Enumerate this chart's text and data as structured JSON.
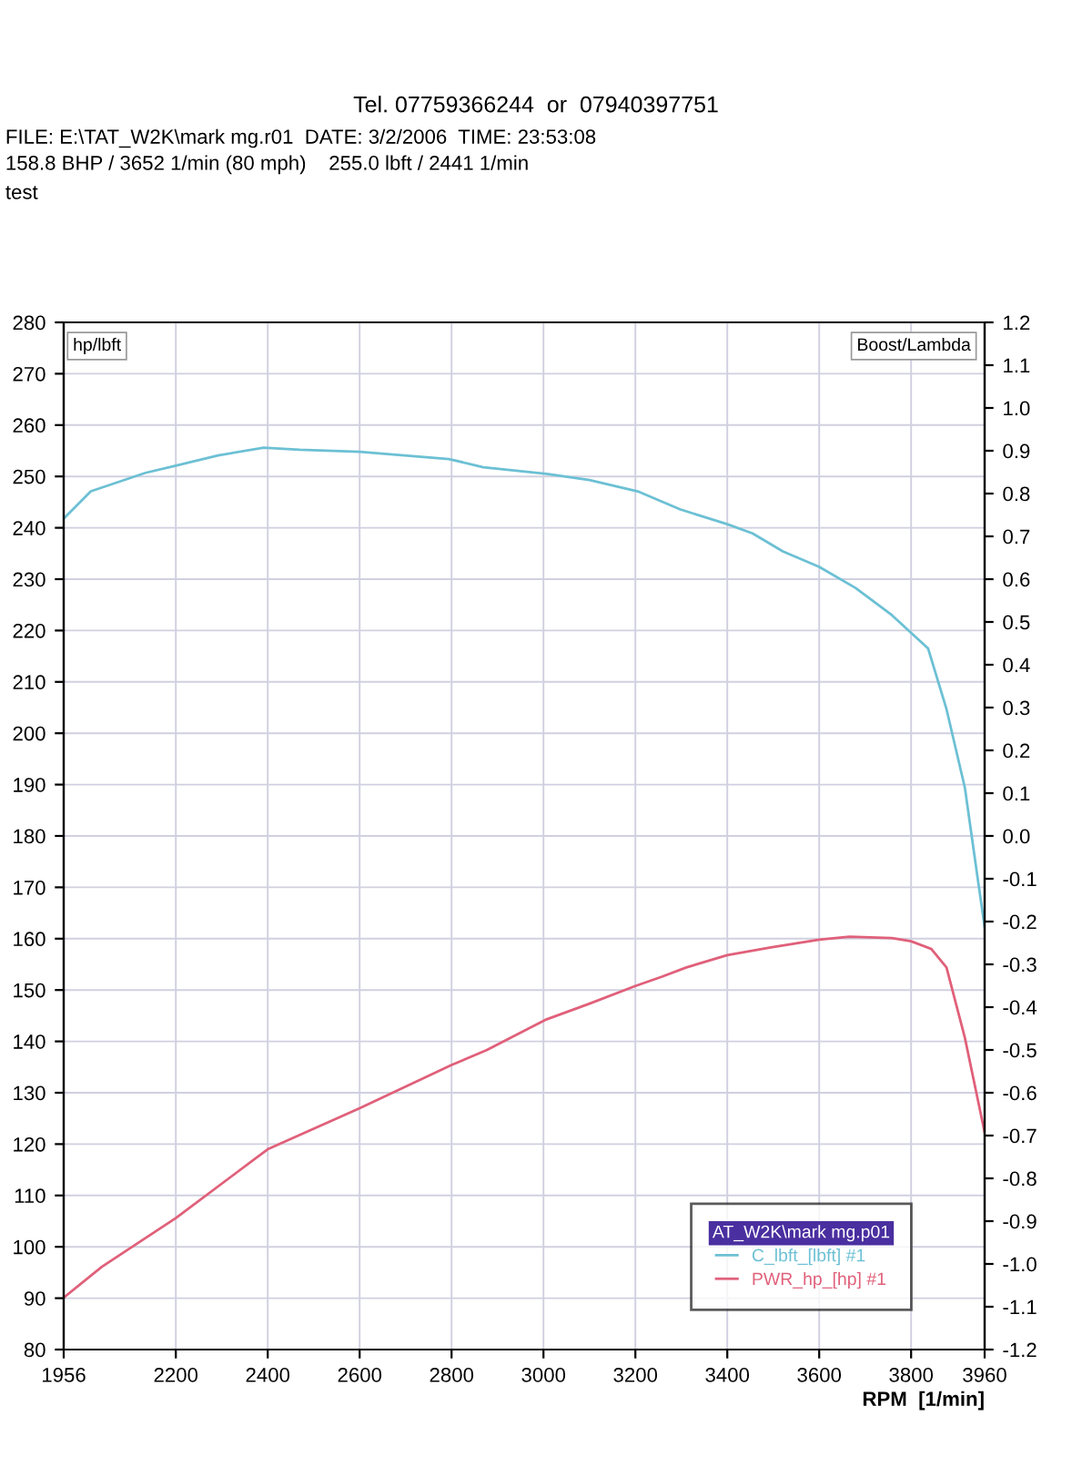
{
  "chart_data": {
    "type": "line",
    "annotations": [
      "Tel. 07759366244  or  07940397751",
      "FILE: E:\\TAT_W2K\\mark mg.r01  DATE: 3/2/2006  TIME: 23:53:08",
      "158.8 BHP / 3652 1/min (80 mph)    255.0 lbft / 2441 1/min",
      "test"
    ],
    "xlabel": "RPM  [1/min]",
    "ylabel": "hp/lbft",
    "y2label": "Boost/Lambda",
    "legend_title": "AT_W2K\\mark mg.p01",
    "legend": "bottom right",
    "grid": true,
    "xlim": [
      1956,
      3960
    ],
    "xticks": [
      1956,
      2200,
      2400,
      2600,
      2800,
      3000,
      3200,
      3400,
      3600,
      3800,
      3960
    ],
    "ylim": [
      80,
      280
    ],
    "yticks": [
      80,
      90,
      100,
      110,
      120,
      130,
      140,
      150,
      160,
      170,
      180,
      190,
      200,
      210,
      220,
      230,
      240,
      250,
      260,
      270,
      280
    ],
    "y2lim": [
      -1.2,
      1.2
    ],
    "y2ticks": [
      1.2,
      1.1,
      {
        "value": 1,
        "label": "1.0"
      },
      0.9,
      0.8,
      0.7,
      0.6,
      0.5,
      0.4,
      0.3,
      0.2,
      0.1,
      {
        "value": 0,
        "label": "0.0"
      },
      -0.1,
      -0.2,
      -0.3,
      -0.4,
      -0.5,
      -0.6,
      -0.7,
      -0.8,
      -0.9,
      {
        "value": -1,
        "label": "-1.0"
      },
      -1.1,
      -1.2
    ],
    "series": [
      {
        "name": "C_lbft_[lbft] #1",
        "color": "#6cc0d4",
        "x": [
          1956,
          2015,
          2134,
          2200,
          2292,
          2391,
          2470,
          2600,
          2794,
          2869,
          3007,
          3100,
          3205,
          3297,
          3400,
          3455,
          3521,
          3600,
          3679,
          3758,
          3837,
          3877,
          3917,
          3943,
          3960
        ],
        "values": [
          241.8,
          247.1,
          250.7,
          252.1,
          254.1,
          255.6,
          255.2,
          254.8,
          253.4,
          251.8,
          250.5,
          249.3,
          247.1,
          243.6,
          240.7,
          238.9,
          235.4,
          232.4,
          228.3,
          223.0,
          216.5,
          204.7,
          189.4,
          172.9,
          162.3
        ]
      },
      {
        "name": "PWR_hp_[hp] #1",
        "color": "#e0607a",
        "x": [
          1956,
          2039,
          2200,
          2400,
          2600,
          2800,
          2876,
          3007,
          3099,
          3200,
          3258,
          3311,
          3400,
          3495,
          3600,
          3666,
          3758,
          3800,
          3844,
          3877,
          3917,
          3960
        ],
        "values": [
          90.1,
          96.1,
          105.6,
          119.0,
          127.0,
          135.4,
          138.3,
          144.3,
          147.3,
          150.8,
          152.6,
          154.4,
          156.8,
          158.3,
          159.8,
          160.4,
          160.1,
          159.5,
          158.0,
          154.4,
          140.7,
          122.3
        ]
      }
    ]
  }
}
